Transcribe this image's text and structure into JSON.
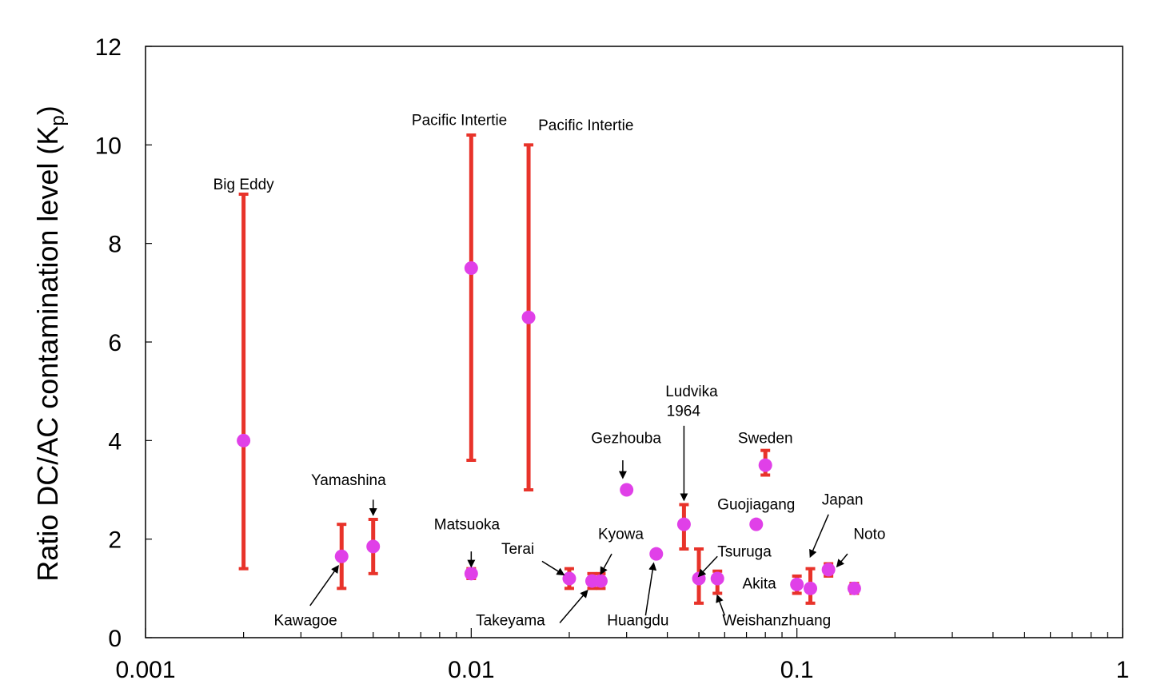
{
  "chart_data": {
    "type": "scatter",
    "title": "",
    "xlabel": "",
    "ylabel": "Ratio DC/AC contamination level (Kp)",
    "ylabel_main": "Ratio DC/AC contamination level (K",
    "ylabel_sub": "p",
    "ylabel_end": ")",
    "xscale": "log",
    "xlim": [
      0.001,
      1
    ],
    "ylim": [
      0,
      12
    ],
    "xticks": [
      0.001,
      0.01,
      0.1,
      1
    ],
    "xtick_labels": [
      "0.001",
      "0.01",
      "0.1",
      "1"
    ],
    "yticks": [
      0,
      2,
      4,
      6,
      8,
      10,
      12
    ],
    "ytick_labels": [
      "0",
      "2",
      "4",
      "6",
      "8",
      "10",
      "12"
    ],
    "grid": false,
    "colors": {
      "marker": "#e040e8",
      "errorbar": "#e8332a",
      "axis": "#000000"
    },
    "points": [
      {
        "x": 0.002,
        "y": 4.0,
        "ymin": 1.4,
        "ymax": 9.0
      },
      {
        "x": 0.004,
        "y": 1.65,
        "ymin": 1.0,
        "ymax": 2.3
      },
      {
        "x": 0.005,
        "y": 1.85,
        "ymin": 1.3,
        "ymax": 2.4
      },
      {
        "x": 0.01,
        "y": 7.5,
        "ymin": 3.6,
        "ymax": 10.2
      },
      {
        "x": 0.01,
        "y": 1.3,
        "ymin": 1.2,
        "ymax": 1.4
      },
      {
        "x": 0.015,
        "y": 6.5,
        "ymin": 3.0,
        "ymax": 10.0
      },
      {
        "x": 0.02,
        "y": 1.2,
        "ymin": 1.0,
        "ymax": 1.4
      },
      {
        "x": 0.0235,
        "y": 1.15,
        "ymin": 1.0,
        "ymax": 1.3
      },
      {
        "x": 0.025,
        "y": 1.15,
        "ymin": 1.0,
        "ymax": 1.3
      },
      {
        "x": 0.03,
        "y": 3.0
      },
      {
        "x": 0.037,
        "y": 1.7
      },
      {
        "x": 0.045,
        "y": 2.3,
        "ymin": 1.8,
        "ymax": 2.7
      },
      {
        "x": 0.05,
        "y": 1.2,
        "ymin": 0.7,
        "ymax": 1.8
      },
      {
        "x": 0.057,
        "y": 1.2,
        "ymin": 0.9,
        "ymax": 1.35
      },
      {
        "x": 0.075,
        "y": 2.3
      },
      {
        "x": 0.08,
        "y": 3.5,
        "ymin": 3.3,
        "ymax": 3.8
      },
      {
        "x": 0.1,
        "y": 1.08,
        "ymin": 0.9,
        "ymax": 1.25
      },
      {
        "x": 0.11,
        "y": 1.0,
        "ymin": 0.7,
        "ymax": 1.4
      },
      {
        "x": 0.125,
        "y": 1.38,
        "ymin": 1.25,
        "ymax": 1.5
      },
      {
        "x": 0.15,
        "y": 1.0,
        "ymin": 0.9,
        "ymax": 1.1
      }
    ],
    "annotations": [
      {
        "text": "Big Eddy",
        "x": 0.002,
        "y": 9.1,
        "anchor": "middle"
      },
      {
        "text": "Pacific Intertie",
        "x": 0.0092,
        "y": 10.4,
        "anchor": "middle"
      },
      {
        "text": "Pacific Intertie",
        "x": 0.0225,
        "y": 10.3,
        "anchor": "middle"
      },
      {
        "text": "Yamashina",
        "x": 0.0042,
        "y": 3.1,
        "anchor": "middle",
        "arrow_from": [
          0.005,
          2.8
        ],
        "arrow_to": [
          0.005,
          2.5
        ]
      },
      {
        "text": "Kawagoe",
        "x": 0.0031,
        "y": 0.25,
        "anchor": "middle",
        "arrow_from": [
          0.0032,
          0.65
        ],
        "arrow_to": [
          0.0039,
          1.45
        ]
      },
      {
        "text": "Matsuoka",
        "x": 0.0097,
        "y": 2.2,
        "anchor": "middle",
        "arrow_from": [
          0.01,
          1.75
        ],
        "arrow_to": [
          0.01,
          1.45
        ]
      },
      {
        "text": "Terai",
        "x": 0.0139,
        "y": 1.7,
        "anchor": "middle",
        "arrow_from": [
          0.0165,
          1.55
        ],
        "arrow_to": [
          0.0192,
          1.28
        ]
      },
      {
        "text": "Takeyama",
        "x": 0.0132,
        "y": 0.25,
        "anchor": "middle",
        "arrow_from": [
          0.0187,
          0.3
        ],
        "arrow_to": [
          0.0227,
          0.95
        ]
      },
      {
        "text": "Kyowa",
        "x": 0.0288,
        "y": 2.0,
        "anchor": "middle",
        "arrow_from": [
          0.027,
          1.7
        ],
        "arrow_to": [
          0.025,
          1.3
        ]
      },
      {
        "text": "Gezhouba",
        "x": 0.0299,
        "y": 3.95,
        "anchor": "middle",
        "arrow_from": [
          0.0292,
          3.6
        ],
        "arrow_to": [
          0.0292,
          3.25
        ]
      },
      {
        "text": "Huangdu",
        "x": 0.0325,
        "y": 0.25,
        "anchor": "middle",
        "arrow_from": [
          0.0343,
          0.45
        ],
        "arrow_to": [
          0.0363,
          1.5
        ]
      },
      {
        "text": "Ludvika",
        "x": 0.0475,
        "y": 4.9,
        "anchor": "middle",
        "arrow_from": [
          0.045,
          4.3
        ],
        "arrow_to": [
          0.045,
          2.8
        ]
      },
      {
        "text": "1964",
        "x": 0.0398,
        "y": 4.5,
        "anchor": "start"
      },
      {
        "text": "Sweden",
        "x": 0.08,
        "y": 3.95,
        "anchor": "middle"
      },
      {
        "text": "Guojiagang",
        "x": 0.075,
        "y": 2.6,
        "anchor": "middle"
      },
      {
        "text": "Tsuruga",
        "x": 0.057,
        "y": 1.65,
        "anchor": "start",
        "arrow_from": [
          0.057,
          1.65
        ],
        "arrow_to": [
          0.05,
          1.25
        ]
      },
      {
        "text": "Weishanzhuang",
        "x": 0.059,
        "y": 0.25,
        "anchor": "start",
        "arrow_from": [
          0.06,
          0.45
        ],
        "arrow_to": [
          0.057,
          0.85
        ]
      },
      {
        "text": "Akita",
        "x": 0.068,
        "y": 1.0,
        "anchor": "start"
      },
      {
        "text": "Japan",
        "x": 0.138,
        "y": 2.7,
        "anchor": "middle",
        "arrow_from": [
          0.125,
          2.5
        ],
        "arrow_to": [
          0.11,
          1.65
        ]
      },
      {
        "text": "Noto",
        "x": 0.167,
        "y": 2.0,
        "anchor": "middle",
        "arrow_from": [
          0.143,
          1.7
        ],
        "arrow_to": [
          0.133,
          1.45
        ]
      }
    ]
  }
}
